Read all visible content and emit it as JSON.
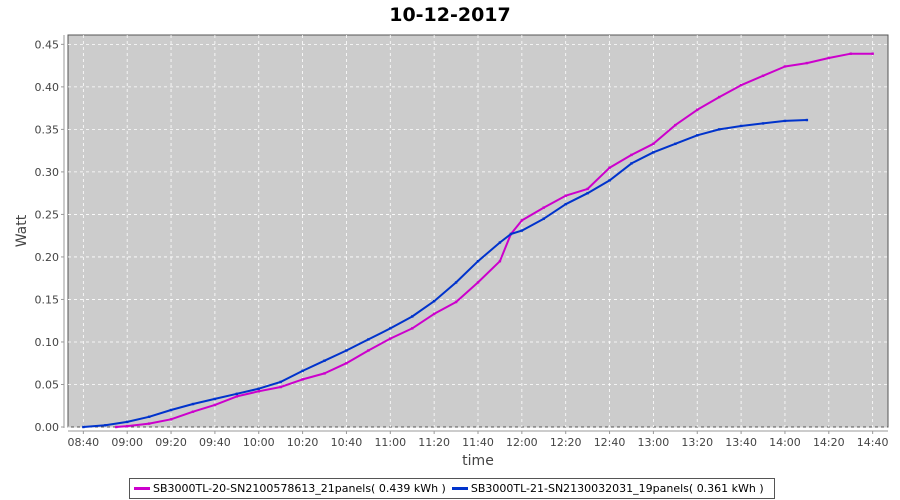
{
  "chart_data": {
    "type": "line",
    "title": "10-12-2017",
    "xlabel": "time",
    "ylabel": "Watt",
    "xlim": [
      "08:33",
      "14:47"
    ],
    "ylim": [
      0,
      0.461
    ],
    "grid": true,
    "legend_position": "bottom",
    "background": "#cccccc",
    "xticks": [
      "08:40",
      "09:00",
      "09:20",
      "09:40",
      "10:00",
      "10:20",
      "10:40",
      "11:00",
      "11:20",
      "11:40",
      "12:00",
      "12:20",
      "12:40",
      "13:00",
      "13:20",
      "13:40",
      "14:00",
      "14:20",
      "14:40"
    ],
    "yticks": [
      "0.00",
      "0.05",
      "0.10",
      "0.15",
      "0.20",
      "0.25",
      "0.30",
      "0.35",
      "0.40",
      "0.45"
    ],
    "series": [
      {
        "name": "SB3000TL-20-SN2100578613_21panels( 0.439 kWh )",
        "color": "#cc00cc",
        "x": [
          "08:55",
          "09:00",
          "09:10",
          "09:20",
          "09:30",
          "09:40",
          "09:50",
          "10:00",
          "10:10",
          "10:20",
          "10:30",
          "10:40",
          "10:50",
          "11:00",
          "11:10",
          "11:20",
          "11:30",
          "11:40",
          "11:50",
          "11:55",
          "12:00",
          "12:10",
          "12:20",
          "12:30",
          "12:40",
          "12:50",
          "13:00",
          "13:10",
          "13:20",
          "13:30",
          "13:40",
          "13:50",
          "14:00",
          "14:10",
          "14:20",
          "14:30",
          "14:40"
        ],
        "y": [
          0.0,
          0.001,
          0.004,
          0.009,
          0.018,
          0.026,
          0.036,
          0.042,
          0.047,
          0.056,
          0.063,
          0.075,
          0.09,
          0.104,
          0.116,
          0.133,
          0.147,
          0.17,
          0.195,
          0.227,
          0.243,
          0.258,
          0.272,
          0.28,
          0.305,
          0.32,
          0.333,
          0.355,
          0.373,
          0.388,
          0.402,
          0.413,
          0.424,
          0.428,
          0.434,
          0.439,
          0.439
        ]
      },
      {
        "name": "SB3000TL-21-SN2130032031_19panels( 0.361 kWh )",
        "color": "#0033cc",
        "x": [
          "08:40",
          "08:50",
          "09:00",
          "09:10",
          "09:20",
          "09:30",
          "09:40",
          "09:50",
          "10:00",
          "10:10",
          "10:20",
          "10:30",
          "10:40",
          "10:50",
          "11:00",
          "11:10",
          "11:20",
          "11:30",
          "11:40",
          "11:50",
          "11:55",
          "12:00",
          "12:10",
          "12:20",
          "12:30",
          "12:40",
          "12:50",
          "13:00",
          "13:10",
          "13:20",
          "13:30",
          "13:40",
          "13:50",
          "14:00",
          "14:10"
        ],
        "y": [
          0.0,
          0.002,
          0.006,
          0.012,
          0.02,
          0.027,
          0.033,
          0.039,
          0.045,
          0.053,
          0.066,
          0.078,
          0.09,
          0.103,
          0.116,
          0.13,
          0.148,
          0.17,
          0.195,
          0.217,
          0.227,
          0.231,
          0.245,
          0.262,
          0.275,
          0.29,
          0.31,
          0.323,
          0.333,
          0.343,
          0.35,
          0.354,
          0.357,
          0.36,
          0.361
        ]
      }
    ]
  }
}
